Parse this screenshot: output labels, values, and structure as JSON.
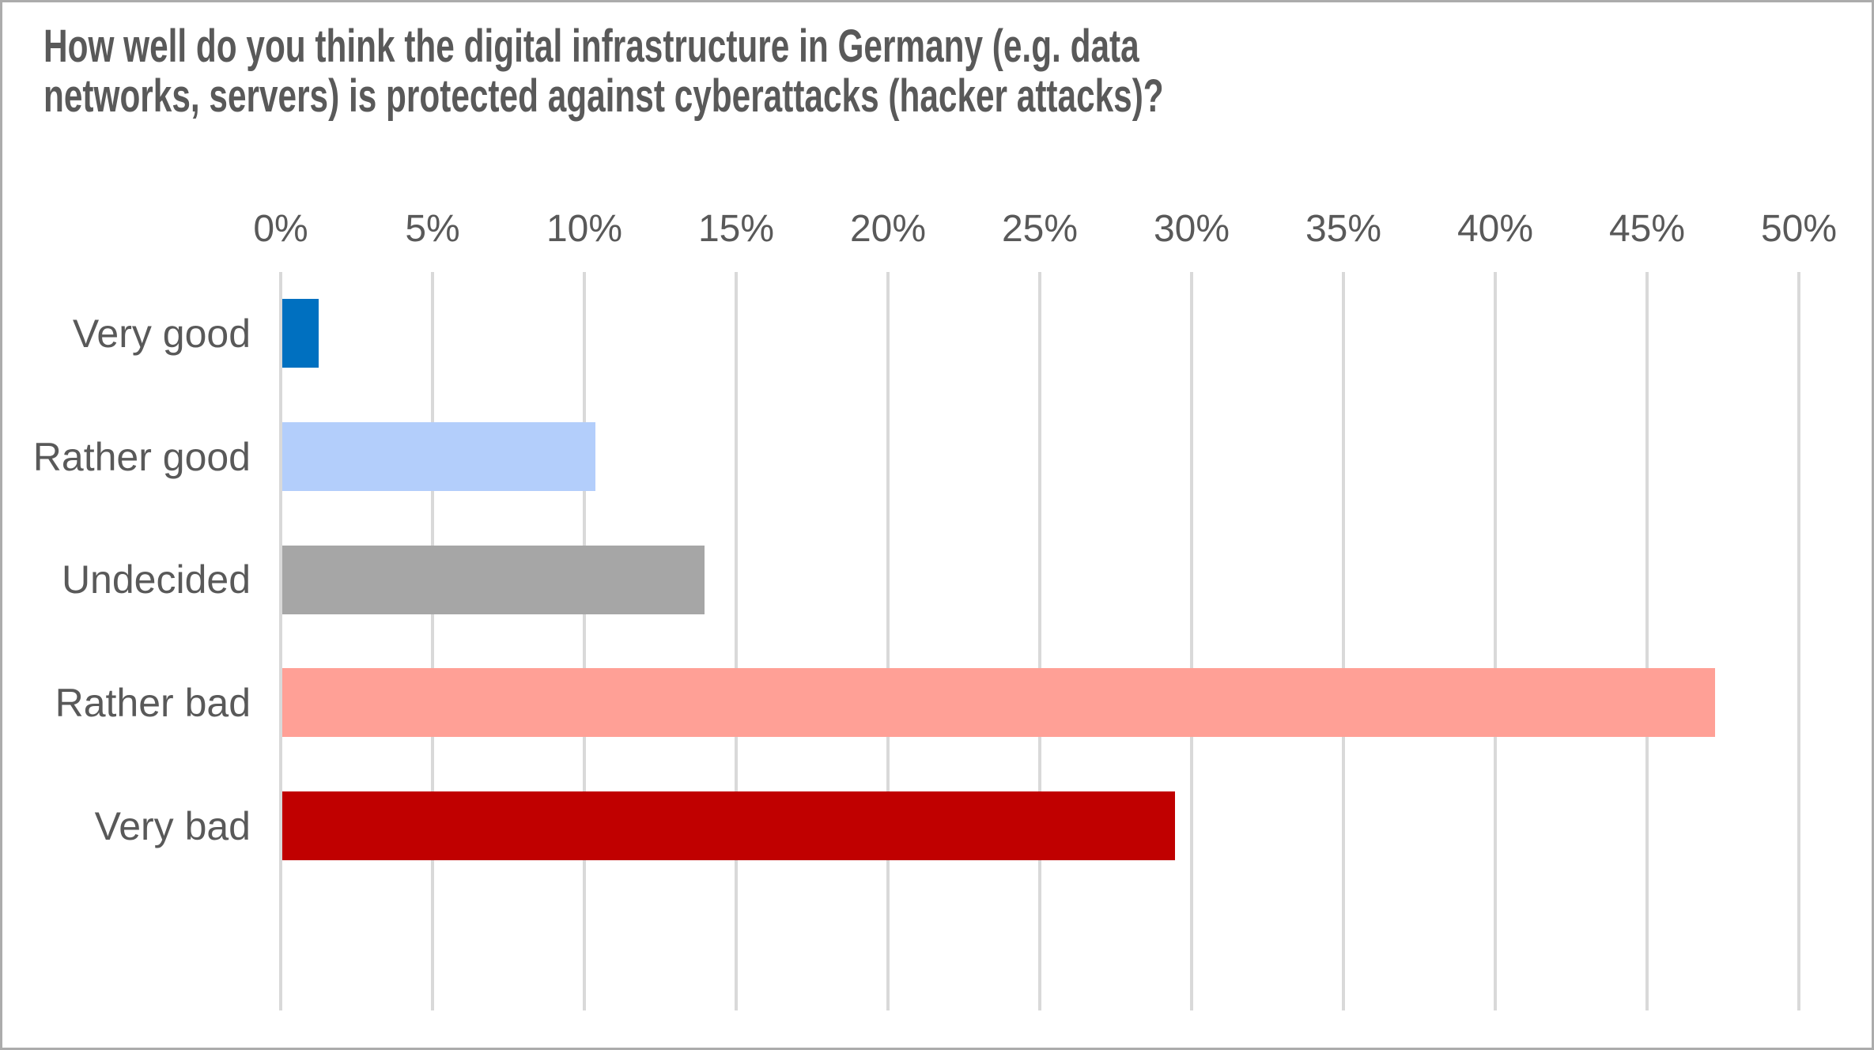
{
  "chart_data": {
    "type": "bar",
    "orientation": "horizontal",
    "title": "How well do you think the digital infrastructure in Germany (e.g. data networks, servers) is protected against cyberattacks (hacker attacks)?",
    "title_lines": [
      "How well do you think the digital infrastructure in Germany (e.g. data",
      "networks, servers) is protected against cyberattacks (hacker attacks)?"
    ],
    "categories": [
      "Very good",
      "Rather good",
      "Undecided",
      "Rather bad",
      "Very bad"
    ],
    "values": [
      1.2,
      10.3,
      13.9,
      47.2,
      29.4
    ],
    "unit": "%",
    "bar_colors": [
      "#0070C0",
      "#B3CEFB",
      "#A6A6A6",
      "#FFA096",
      "#C00000"
    ],
    "x_ticks": [
      "0%",
      "5%",
      "10%",
      "15%",
      "20%",
      "25%",
      "30%",
      "35%",
      "40%",
      "45%",
      "50%"
    ],
    "xlim": [
      0,
      50
    ],
    "xlabel": "",
    "ylabel": "",
    "grid": true,
    "legend": false,
    "axis_position": "top",
    "colors": {
      "title_text": "#595959",
      "axis_text": "#595959",
      "gridline": "#D9D9D9",
      "background": "#FFFFFF",
      "frame_border": "#ACACAC"
    }
  }
}
